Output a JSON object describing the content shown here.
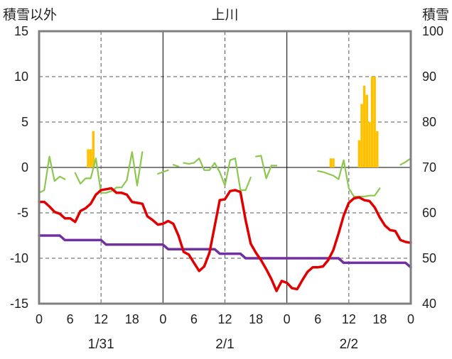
{
  "chart_data": {
    "type": "line",
    "title": "上川",
    "left_axis_label": "積雪以外",
    "right_axis_label": "積雪",
    "y_left": {
      "min": -15,
      "max": 15,
      "ticks": [
        15,
        10,
        5,
        0,
        -5,
        -10,
        -15
      ]
    },
    "y_right": {
      "min": 40,
      "max": 100,
      "ticks": [
        100,
        90,
        80,
        70,
        60,
        50,
        40
      ]
    },
    "x_tick_labels": [
      "0",
      "6",
      "12",
      "18",
      "0",
      "6",
      "12",
      "18",
      "0",
      "6",
      "12",
      "18",
      "0"
    ],
    "date_labels": [
      "1/31",
      "2/1",
      "2/2"
    ],
    "x_range": [
      0,
      72
    ],
    "grid": {
      "vertical_dashed_every_hours": 12,
      "horizontal_dashed_at": [
        10,
        5,
        -5,
        -10
      ]
    },
    "colors": {
      "precip": "#ffc000",
      "temp": "#e00000",
      "snow": "#7030a0",
      "wind": "#8cc850",
      "frame": "#7f7f7f"
    },
    "series": [
      {
        "key": "precip",
        "axis": "left",
        "kind": "bar",
        "color": "#ffc000",
        "x": [
          9.5,
          10,
          10.5,
          56.5,
          57,
          62,
          62.5,
          63,
          63.5,
          64,
          64.5,
          65,
          65.5,
          66
        ],
        "values": [
          2,
          2,
          4,
          1,
          1,
          3,
          7,
          9,
          8,
          5,
          10,
          10,
          4,
          0
        ]
      },
      {
        "key": "temp",
        "axis": "left",
        "kind": "line",
        "color": "#e00000",
        "x": [
          0,
          1,
          2,
          3,
          4,
          5,
          6,
          7,
          8,
          9,
          10,
          11,
          12,
          13,
          14,
          15,
          16,
          17,
          18,
          19,
          20,
          21,
          22,
          23,
          24,
          25,
          26,
          27,
          28,
          29,
          30,
          31,
          32,
          33,
          34,
          35,
          36,
          37,
          38,
          39,
          40,
          41,
          42,
          43,
          44,
          45,
          46,
          47,
          48,
          49,
          50,
          51,
          52,
          53,
          54,
          55,
          56,
          57,
          58,
          59,
          60,
          61,
          62,
          63,
          64,
          65,
          66,
          67,
          68,
          69,
          70,
          71,
          72
        ],
        "values": [
          -3.8,
          -3.8,
          -4.3,
          -4.9,
          -5.1,
          -5.6,
          -5.6,
          -6.0,
          -4.8,
          -4.5,
          -4.0,
          -3.0,
          -2.5,
          -2.4,
          -2.3,
          -2.8,
          -2.8,
          -3.0,
          -3.8,
          -3.9,
          -4.0,
          -5.4,
          -5.8,
          -6.3,
          -6.2,
          -5.9,
          -6.2,
          -7.5,
          -9.3,
          -9.6,
          -10.5,
          -11.4,
          -10.9,
          -9.4,
          -6.5,
          -3.6,
          -3.5,
          -2.6,
          -2.5,
          -2.7,
          -5.8,
          -8.4,
          -9.4,
          -10.2,
          -11.2,
          -12.3,
          -13.6,
          -12.5,
          -12.7,
          -13.3,
          -13.4,
          -12.4,
          -11.5,
          -11.0,
          -11.0,
          -10.9,
          -10.2,
          -9.1,
          -7.3,
          -5.3,
          -3.9,
          -3.4,
          -3.3,
          -3.6,
          -3.7,
          -4.4,
          -5.5,
          -6.4,
          -6.9,
          -7.0,
          -8.0,
          -8.2,
          -8.3
        ]
      },
      {
        "key": "snow",
        "axis": "right",
        "kind": "line",
        "color": "#7030a0",
        "x": [
          0,
          1,
          2,
          3,
          4,
          5,
          6,
          7,
          8,
          9,
          10,
          11,
          12,
          13,
          14,
          15,
          16,
          17,
          18,
          19,
          20,
          21,
          22,
          23,
          24,
          25,
          26,
          27,
          28,
          29,
          30,
          31,
          32,
          33,
          34,
          35,
          36,
          37,
          38,
          39,
          40,
          41,
          42,
          43,
          44,
          45,
          46,
          47,
          48,
          49,
          50,
          51,
          52,
          53,
          54,
          55,
          56,
          57,
          58,
          59,
          60,
          61,
          62,
          63,
          64,
          65,
          66,
          67,
          68,
          69,
          70,
          71,
          72
        ],
        "values": [
          55,
          55,
          55,
          55,
          55,
          54,
          54,
          54,
          54,
          54,
          54,
          54,
          54,
          53,
          53,
          53,
          53,
          53,
          53,
          53,
          53,
          53,
          53,
          53,
          53,
          52,
          52,
          52,
          52,
          52,
          52,
          52,
          52,
          52,
          52,
          51,
          51,
          51,
          51,
          51,
          50,
          50,
          50,
          50,
          50,
          50,
          50,
          50,
          50,
          50,
          50,
          50,
          50,
          50,
          50,
          50,
          50,
          50,
          50,
          49,
          49,
          49,
          49,
          49,
          49,
          49,
          49,
          49,
          49,
          49,
          49,
          49,
          48
        ]
      },
      {
        "key": "wind",
        "axis": "left",
        "kind": "line",
        "color": "#8cc850",
        "segments": [
          {
            "x": [
              0,
              1,
              2,
              3,
              4,
              5
            ],
            "values": [
              -2.8,
              -2.5,
              1.2,
              -1.5,
              -1.0,
              -1.3
            ]
          },
          {
            "x": [
              7,
              8,
              9,
              10,
              11,
              12,
              13,
              14,
              15,
              16,
              17,
              18,
              19,
              20
            ],
            "values": [
              -0.6,
              -1.8,
              -1.2,
              -1.2,
              1.0,
              -2.8,
              -2.8,
              -2.6,
              -2.2,
              -2.2,
              -1.4,
              1.7,
              -2.0,
              1.7
            ]
          },
          {
            "x": [
              23,
              24,
              25
            ],
            "values": [
              -0.7,
              -0.5,
              -0.3
            ]
          },
          {
            "x": [
              26,
              27
            ],
            "values": [
              0.3,
              0.1
            ]
          },
          {
            "x": [
              28,
              29,
              30,
              31,
              32,
              33,
              34,
              35,
              36,
              37,
              38,
              39,
              40,
              41
            ],
            "values": [
              0.5,
              0.4,
              0.5,
              1.0,
              -0.3,
              -0.3,
              0.5,
              -0.5,
              -2.0,
              0.8,
              1.0,
              -2.5,
              -2.5,
              -1.1
            ]
          },
          {
            "x": [
              42,
              43,
              44,
              45,
              46
            ],
            "values": [
              1.2,
              1.3,
              -1.2,
              0.2,
              0.2
            ]
          },
          {
            "x": [
              54,
              55,
              56,
              57,
              58,
              59,
              60,
              61,
              62,
              63,
              64,
              65,
              66
            ],
            "values": [
              -0.4,
              -0.5,
              -0.7,
              -0.9,
              -1.3,
              0.8,
              -2.3,
              -3.2,
              -3.2,
              -3.2,
              -3.1,
              -3.1,
              -2.3
            ]
          },
          {
            "x": [
              70,
              71,
              72
            ],
            "values": [
              0.3,
              0.6,
              1.0
            ]
          }
        ]
      }
    ]
  }
}
